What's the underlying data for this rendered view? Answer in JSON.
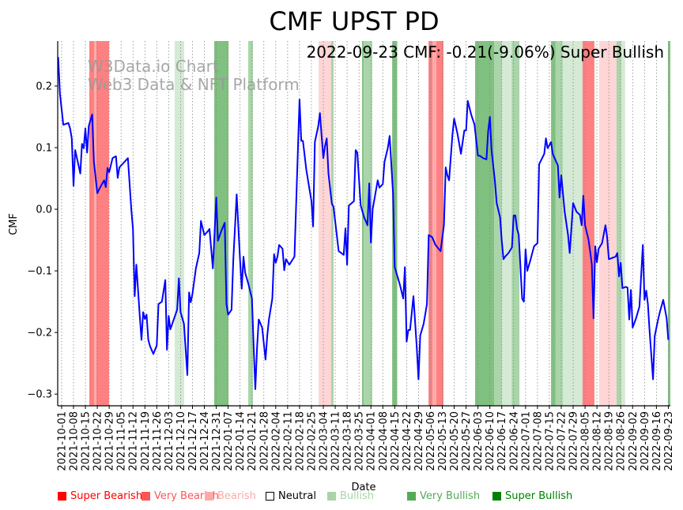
{
  "chart_data": {
    "type": "line",
    "title": "CMF UPST PD",
    "annotation": "2022-09-23 CMF: -0.21(-9.06%) Super Bullish",
    "watermark": [
      "W3Data.io Chart",
      "Web3 Data & NFT Platform"
    ],
    "xlabel": "Date",
    "ylabel": "CMF",
    "x_origin": "2021-10-01",
    "x_unit": "days since 2021-10-01",
    "xlim": [
      -2.3,
      358.2
    ],
    "ylim": [
      -0.319,
      0.273
    ],
    "grid": "vertical dotted",
    "yticks": [
      0.2,
      0.1,
      0.0,
      -0.1,
      -0.2,
      -0.3
    ],
    "ytick_labels": [
      "0.2",
      "0.1",
      "0.0",
      "−0.1",
      "−0.2",
      "−0.3"
    ],
    "xticks": [
      0,
      7,
      14,
      21,
      28,
      35,
      42,
      49,
      56,
      63,
      70,
      77,
      84,
      91,
      98,
      105,
      112,
      119,
      126,
      133,
      140,
      147,
      154,
      161,
      168,
      175,
      182,
      189,
      196,
      203,
      210,
      217,
      224,
      231,
      238,
      245,
      252,
      259,
      266,
      273,
      280,
      287,
      294,
      301,
      308,
      315,
      322,
      329,
      336,
      343,
      350,
      357
    ],
    "xtick_labels": [
      "2021-10-01",
      "2021-10-08",
      "2021-10-15",
      "2021-10-22",
      "2021-10-29",
      "2021-11-05",
      "2021-11-12",
      "2021-11-19",
      "2021-11-26",
      "2021-12-03",
      "2021-12-10",
      "2021-12-17",
      "2021-12-24",
      "2021-12-31",
      "2022-01-07",
      "2022-01-14",
      "2022-01-21",
      "2022-01-28",
      "2022-02-04",
      "2022-02-11",
      "2022-02-18",
      "2022-02-25",
      "2022-03-04",
      "2022-03-11",
      "2022-03-18",
      "2022-03-25",
      "2022-04-01",
      "2022-04-08",
      "2022-04-15",
      "2022-04-22",
      "2022-04-29",
      "2022-05-06",
      "2022-05-13",
      "2022-05-20",
      "2022-05-27",
      "2022-06-03",
      "2022-06-10",
      "2022-06-17",
      "2022-06-24",
      "2022-07-01",
      "2022-07-08",
      "2022-07-15",
      "2022-07-22",
      "2022-07-29",
      "2022-08-05",
      "2022-08-12",
      "2022-08-19",
      "2022-08-26",
      "2022-09-02",
      "2022-09-09",
      "2022-09-16",
      "2022-09-23"
    ],
    "series": [
      {
        "name": "CMF",
        "color": "#0000ff",
        "x": [
          -2,
          -1,
          1,
          4,
          5,
          6,
          7,
          8,
          11,
          12,
          13,
          14,
          15,
          16,
          18,
          19,
          21,
          22,
          25,
          26,
          27,
          28,
          30,
          32,
          33,
          34,
          37,
          39,
          41,
          42,
          43,
          44,
          46,
          47,
          48,
          49,
          50,
          51,
          52,
          54,
          56,
          57,
          59,
          61,
          62,
          63,
          64,
          66,
          68,
          69,
          70,
          72,
          74,
          75,
          76,
          77,
          79,
          81,
          82,
          84,
          86,
          87,
          89,
          91,
          92,
          94,
          96,
          97,
          98,
          100,
          101,
          103,
          105,
          106,
          107,
          108,
          110,
          112,
          113,
          114,
          115,
          116,
          118,
          120,
          121,
          122,
          124,
          125,
          126,
          127,
          128,
          130,
          131,
          132,
          134,
          137,
          140,
          141,
          142,
          144,
          147,
          148,
          149,
          151,
          152,
          154,
          155,
          156,
          157,
          159,
          160,
          163,
          166,
          167,
          168,
          169,
          172,
          173,
          174,
          176,
          178,
          180,
          181,
          182,
          183,
          186,
          187,
          189,
          190,
          192,
          193,
          195,
          196,
          199,
          201,
          202,
          203,
          204,
          205,
          207,
          209,
          210,
          211,
          213,
          215,
          216,
          218,
          220,
          223,
          225,
          226,
          227,
          228,
          230,
          231,
          233,
          235,
          237,
          238,
          239,
          241,
          243,
          245,
          246,
          248,
          250,
          251,
          252,
          253,
          255,
          256,
          258,
          259,
          260,
          261,
          263,
          265,
          266,
          267,
          268,
          269,
          271,
          272,
          273,
          274,
          276,
          278,
          280,
          281,
          284,
          285,
          286,
          288,
          289,
          292,
          293,
          294,
          296,
          298,
          299,
          301,
          303,
          305,
          306,
          307,
          308,
          310,
          311,
          312,
          313,
          314,
          315,
          316,
          318,
          320,
          321,
          322,
          324,
          326,
          327,
          328,
          329,
          330,
          332,
          333,
          334,
          335,
          336,
          338,
          340,
          342,
          343,
          344,
          345,
          346,
          348,
          349,
          351,
          352,
          354,
          356,
          357
        ],
        "y": [
          0.247,
          0.188,
          0.137,
          0.14,
          0.131,
          0.115,
          0.038,
          0.096,
          0.058,
          0.106,
          0.099,
          0.131,
          0.092,
          0.135,
          0.154,
          0.077,
          0.026,
          0.032,
          0.047,
          0.036,
          0.067,
          0.06,
          0.083,
          0.086,
          0.051,
          0.068,
          0.077,
          0.083,
          0.0,
          -0.032,
          -0.141,
          -0.09,
          -0.173,
          -0.212,
          -0.167,
          -0.178,
          -0.171,
          -0.212,
          -0.222,
          -0.235,
          -0.221,
          -0.154,
          -0.15,
          -0.115,
          -0.228,
          -0.173,
          -0.195,
          -0.179,
          -0.163,
          -0.112,
          -0.167,
          -0.186,
          -0.269,
          -0.135,
          -0.151,
          -0.137,
          -0.096,
          -0.071,
          -0.019,
          -0.042,
          -0.036,
          -0.032,
          -0.096,
          0.019,
          -0.051,
          -0.035,
          -0.022,
          -0.154,
          -0.171,
          -0.163,
          -0.083,
          0.024,
          -0.083,
          -0.129,
          -0.077,
          -0.103,
          -0.122,
          -0.145,
          -0.224,
          -0.292,
          -0.224,
          -0.179,
          -0.192,
          -0.244,
          -0.205,
          -0.179,
          -0.145,
          -0.073,
          -0.087,
          -0.077,
          -0.058,
          -0.064,
          -0.099,
          -0.081,
          -0.09,
          -0.077,
          0.178,
          0.111,
          0.111,
          0.064,
          0.013,
          -0.028,
          0.109,
          0.135,
          0.156,
          0.083,
          0.103,
          0.115,
          0.058,
          0.009,
          0.004,
          -0.068,
          -0.074,
          -0.031,
          -0.09,
          0.006,
          0.013,
          0.096,
          0.092,
          0.006,
          -0.013,
          -0.026,
          0.042,
          -0.054,
          0.0,
          0.047,
          0.035,
          0.041,
          0.077,
          0.1,
          0.119,
          0.026,
          -0.094,
          -0.122,
          -0.145,
          -0.094,
          -0.215,
          -0.196,
          -0.196,
          -0.141,
          -0.226,
          -0.276,
          -0.205,
          -0.186,
          -0.154,
          -0.042,
          -0.045,
          -0.058,
          -0.068,
          -0.026,
          0.068,
          0.055,
          0.047,
          0.122,
          0.147,
          0.122,
          0.09,
          0.128,
          0.128,
          0.176,
          0.154,
          0.137,
          0.087,
          0.087,
          0.083,
          0.081,
          0.126,
          0.15,
          0.096,
          0.045,
          0.01,
          -0.013,
          -0.051,
          -0.081,
          -0.077,
          -0.071,
          -0.062,
          -0.01,
          -0.01,
          -0.032,
          -0.042,
          -0.145,
          -0.15,
          -0.065,
          -0.1,
          -0.081,
          -0.06,
          -0.055,
          0.073,
          0.09,
          0.115,
          0.099,
          0.109,
          0.09,
          0.071,
          0.019,
          0.055,
          -0.004,
          -0.042,
          -0.071,
          0.01,
          -0.004,
          -0.009,
          -0.026,
          0.022,
          -0.026,
          -0.049,
          -0.068,
          -0.09,
          -0.177,
          -0.06,
          -0.086,
          -0.064,
          -0.055,
          -0.026,
          -0.045,
          -0.081,
          -0.079,
          -0.077,
          -0.071,
          -0.109,
          -0.087,
          -0.128,
          -0.126,
          -0.127,
          -0.179,
          -0.131,
          -0.192,
          -0.177,
          -0.158,
          -0.058,
          -0.147,
          -0.132,
          -0.154,
          -0.199,
          -0.276,
          -0.206,
          -0.179,
          -0.167,
          -0.147,
          -0.177,
          -0.212
        ]
      }
    ],
    "signal_bands": [
      {
        "start": 16.3,
        "end": 19.1,
        "signal": "Super Bearish"
      },
      {
        "start": 19.1,
        "end": 20.5,
        "signal": "Very Bearish"
      },
      {
        "start": 20.5,
        "end": 27.9,
        "signal": "Super Bearish"
      },
      {
        "start": 66.5,
        "end": 72.1,
        "signal": "Bullish"
      },
      {
        "start": 89.8,
        "end": 98.2,
        "signal": "Super Bullish"
      },
      {
        "start": 109.8,
        "end": 112.6,
        "signal": "Very Bullish"
      },
      {
        "start": 151.2,
        "end": 158.6,
        "signal": "Bearish"
      },
      {
        "start": 158.6,
        "end": 160.0,
        "signal": "Very Bullish"
      },
      {
        "start": 176.8,
        "end": 177.7,
        "signal": "Super Bullish"
      },
      {
        "start": 177.7,
        "end": 182.8,
        "signal": "Very Bullish"
      },
      {
        "start": 194.5,
        "end": 197.5,
        "signal": "Super Bullish"
      },
      {
        "start": 215.9,
        "end": 218.2,
        "signal": "Super Bearish"
      },
      {
        "start": 218.2,
        "end": 220.5,
        "signal": "Very Bearish"
      },
      {
        "start": 220.5,
        "end": 224.7,
        "signal": "Super Bearish"
      },
      {
        "start": 243.3,
        "end": 254.5,
        "signal": "Super Bullish"
      },
      {
        "start": 254.5,
        "end": 259.2,
        "signal": "Very Bullish"
      },
      {
        "start": 259.2,
        "end": 264.8,
        "signal": "Bullish"
      },
      {
        "start": 264.8,
        "end": 269.4,
        "signal": "Very Bullish"
      },
      {
        "start": 288.0,
        "end": 290.7,
        "signal": "Super Bullish"
      },
      {
        "start": 290.7,
        "end": 294.9,
        "signal": "Very Bullish"
      },
      {
        "start": 294.9,
        "end": 306.5,
        "signal": "Bullish"
      },
      {
        "start": 306.5,
        "end": 313.5,
        "signal": "Super Bearish"
      },
      {
        "start": 316.3,
        "end": 326.5,
        "signal": "Bearish"
      },
      {
        "start": 326.5,
        "end": 329.3,
        "signal": "Very Bullish"
      },
      {
        "start": 329.3,
        "end": 331.6,
        "signal": "Bullish"
      },
      {
        "start": 356.8,
        "end": 358.2,
        "signal": "Super Bullish"
      }
    ],
    "legend": {
      "placement": "bottom",
      "entries": [
        {
          "label": "Super Bearish",
          "color": "#ff0000",
          "band": "#ff8080"
        },
        {
          "label": "Very Bearish",
          "color": "#ff5555",
          "band": "#ffaaaa"
        },
        {
          "label": "Bearish",
          "color": "#ffaaaa",
          "band": "#ffd5d5"
        },
        {
          "label": "Neutral",
          "color": "#000000",
          "band": "none"
        },
        {
          "label": "Bullish",
          "color": "#aad4aa",
          "band": "#d5ead5"
        },
        {
          "label": "Very Bullish",
          "color": "#55aa55",
          "band": "#aad5aa"
        },
        {
          "label": "Super Bullish",
          "color": "#008000",
          "band": "#80c080"
        }
      ]
    }
  }
}
